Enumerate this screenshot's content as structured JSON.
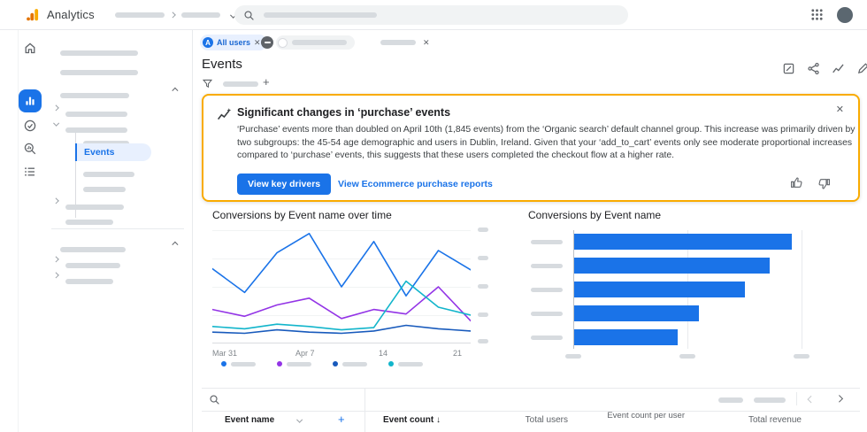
{
  "colors": {
    "accent": "#1a73e8",
    "insight_border": "#f9ab00",
    "bar": "#1a73e8",
    "chip_bg": "#e8f0fe"
  },
  "glyphs": {
    "plus": "+",
    "close": "✕",
    "sort_desc": "↓",
    "all_users_initial": "A"
  },
  "header": {
    "app_name": "Analytics"
  },
  "filter_bar": {
    "all_users_chip": "All users"
  },
  "nav": {
    "selected_item": "Events"
  },
  "page": {
    "title": "Events"
  },
  "insight_card": {
    "title": "Significant changes in ‘purchase’ events",
    "body": "‘Purchase’ events more than doubled on April 10th (1,845 events) from the ‘Organic search’ default channel group. This increase was primarily driven by two subgroups: the 45-54 age demographic and users in Dublin, Ireland. Given that your ‘add_to_cart’ events only see moderate proportional increases compared to ‘purchase’ events, this suggests that these users completed the checkout flow at a higher rate.",
    "primary_button": "View key drivers",
    "secondary_link": "View Ecommerce purchase reports"
  },
  "chart_data": [
    {
      "type": "line",
      "title": "Conversions by Event name over time",
      "x_tick_labels": [
        "Mar 31",
        "Apr 7",
        "14",
        "21"
      ],
      "ylim": [
        0,
        100
      ],
      "y_axis_position": "right",
      "y_tick_labels_redacted": true,
      "legend_position": "bottom",
      "legend_labels_redacted": true,
      "series": [
        {
          "label_redacted": true,
          "color": "#1a73e8",
          "values": [
            66,
            45,
            80,
            97,
            50,
            90,
            42,
            82,
            65
          ]
        },
        {
          "label_redacted": true,
          "color": "#9334e6",
          "values": [
            30,
            24,
            34,
            40,
            22,
            30,
            26,
            50,
            20
          ]
        },
        {
          "label_redacted": true,
          "color": "#185abc",
          "values": [
            10,
            9,
            12,
            10,
            9,
            11,
            16,
            13,
            11
          ]
        },
        {
          "label_redacted": true,
          "color": "#12b5cb",
          "values": [
            15,
            13,
            17,
            15,
            12,
            14,
            55,
            32,
            25
          ]
        }
      ]
    },
    {
      "type": "bar",
      "orientation": "horizontal",
      "title": "Conversions by Event name",
      "category_labels_redacted": true,
      "x_tick_labels_redacted": true,
      "values": [
        1600,
        1440,
        1260,
        920,
        760
      ],
      "xlim": [
        0,
        2000
      ],
      "bar_color": "#1a73e8"
    }
  ],
  "table": {
    "columns": [
      "Event name",
      "Event count",
      "Total users",
      "Event count per user",
      "Total revenue"
    ],
    "sort_column": "Event count",
    "sort_direction": "descending"
  }
}
